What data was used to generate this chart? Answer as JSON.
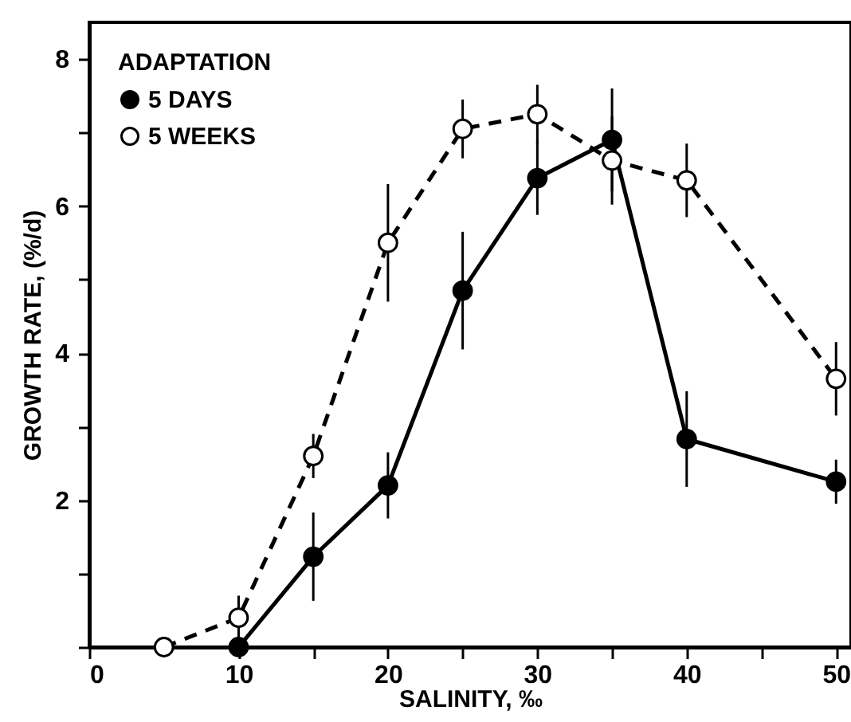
{
  "chart_data": {
    "type": "line",
    "xlabel": "SALINITY, ‰",
    "ylabel": "GROWTH RATE, (%/d)",
    "legend_title": "ADAPTATION",
    "legend": "top left",
    "marker": "circle",
    "grid": false,
    "xlim": [
      0,
      51
    ],
    "xticks": [
      0,
      10,
      {
        "value": 15,
        "label": null
      },
      20,
      {
        "value": 25,
        "label": null
      },
      30,
      {
        "value": 35,
        "label": null
      },
      40,
      {
        "value": 45,
        "label": null
      },
      50
    ],
    "ylim": [
      0,
      8.5
    ],
    "yticks": [
      {
        "value": 0,
        "label": null
      },
      {
        "value": 1,
        "label": null
      },
      2,
      {
        "value": 3,
        "label": null
      },
      4,
      {
        "value": 5,
        "label": null
      },
      6,
      {
        "value": 7,
        "label": null
      },
      8
    ],
    "series": [
      {
        "name": "5 DAYS",
        "color": "#000000",
        "line_style": "solid",
        "x": [
          10,
          15,
          20,
          25,
          30,
          35,
          40,
          50
        ],
        "values": [
          0,
          1.23,
          2.2,
          4.85,
          6.38,
          6.9,
          2.83,
          2.25
        ],
        "errors": [
          null,
          0.6,
          0.45,
          0.8,
          0.5,
          0.7,
          0.65,
          0.3
        ]
      },
      {
        "name": "5 WEEKS",
        "color": "#000000",
        "line_style": "dashed",
        "x": [
          5,
          10,
          15,
          20,
          25,
          30,
          35,
          40,
          50
        ],
        "values": [
          0,
          0.4,
          2.6,
          5.5,
          7.05,
          7.25,
          6.62,
          6.35,
          3.65
        ],
        "errors": [
          null,
          0.3,
          0.3,
          0.8,
          0.4,
          0.4,
          0.6,
          0.5,
          0.5
        ]
      }
    ]
  }
}
